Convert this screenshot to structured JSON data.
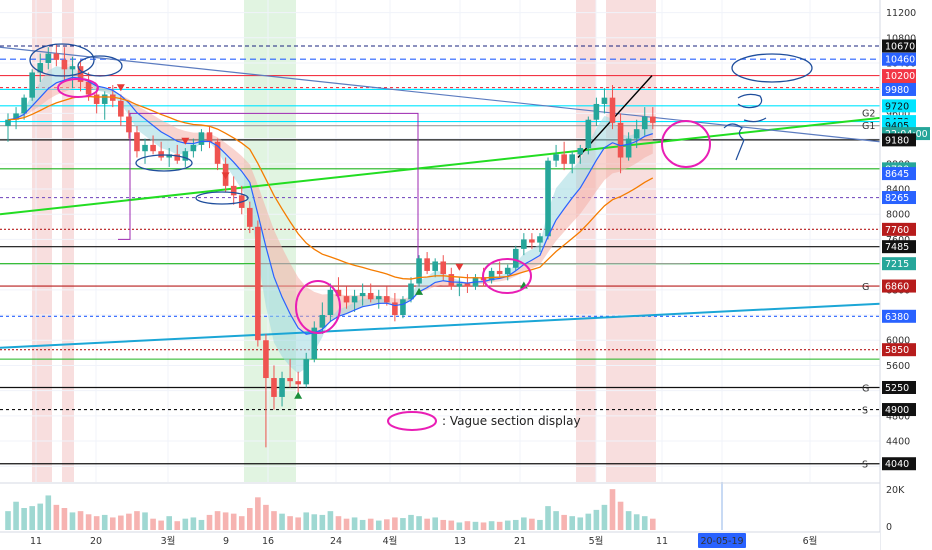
{
  "chart_data": {
    "type": "candlestick",
    "y_axis": {
      "ticks": [
        11200,
        10800,
        10400,
        10000,
        9600,
        9200,
        8800,
        8400,
        8000,
        7600,
        7200,
        6800,
        6400,
        6000,
        5600,
        5200,
        4800,
        4400,
        4000
      ],
      "ylim": [
        3750,
        11400
      ],
      "scale": "linear"
    },
    "x_axis": {
      "labels": [
        "11",
        "20",
        "3월",
        "9",
        "16",
        "24",
        "4월",
        "13",
        "21",
        "5월",
        "11",
        "20-05-19",
        "6월"
      ],
      "highlighted_label": "20-05-19"
    },
    "price_tags": [
      {
        "label": "10670",
        "value": 10670,
        "bg": "#111111",
        "fg": "#ffffff"
      },
      {
        "label": "10460",
        "value": 10460,
        "bg": "#2962ff",
        "fg": "#ffffff"
      },
      {
        "label": "10200",
        "value": 10200,
        "bg": "#f23645",
        "fg": "#ffffff"
      },
      {
        "label": "10010",
        "value": 10010,
        "bg": "#f23645",
        "fg": "#ffffff"
      },
      {
        "label": "9980",
        "value": 9980,
        "bg": "#2962ff",
        "fg": "#ffffff"
      },
      {
        "label": "9720",
        "value": 9720,
        "bg": "#00e5ff",
        "fg": "#111111"
      },
      {
        "label": "9470",
        "value": 9470,
        "bg": "#00e5ff",
        "fg": "#111111"
      },
      {
        "label": "9405",
        "value": 9405,
        "bg": "#00e5ff",
        "fg": "#111111"
      },
      {
        "label": "22:04:00",
        "value": 9280,
        "bg": "#26a69a",
        "fg": "#ffffff"
      },
      {
        "label": "9180",
        "value": 9180,
        "bg": "#111111",
        "fg": "#ffffff"
      },
      {
        "label": "8720",
        "value": 8720,
        "bg": "#26a69a",
        "fg": "#ffffff"
      },
      {
        "label": "8645",
        "value": 8645,
        "bg": "#2962ff",
        "fg": "#ffffff"
      },
      {
        "label": "8265",
        "value": 8265,
        "bg": "#2962ff",
        "fg": "#ffffff"
      },
      {
        "label": "7760",
        "value": 7760,
        "bg": "#b71c1c",
        "fg": "#ffffff"
      },
      {
        "label": "7485",
        "value": 7485,
        "bg": "#111111",
        "fg": "#ffffff"
      },
      {
        "label": "7215",
        "value": 7215,
        "bg": "#26a69a",
        "fg": "#ffffff"
      },
      {
        "label": "6860",
        "value": 6860,
        "bg": "#b71c1c",
        "fg": "#ffffff"
      },
      {
        "label": "6380",
        "value": 6380,
        "bg": "#2962ff",
        "fg": "#ffffff"
      },
      {
        "label": "5850",
        "value": 5850,
        "bg": "#b71c1c",
        "fg": "#ffffff"
      },
      {
        "label": "5250",
        "value": 5250,
        "bg": "#111111",
        "fg": "#ffffff"
      },
      {
        "label": "4900",
        "value": 4900,
        "bg": "#111111",
        "fg": "#ffffff"
      },
      {
        "label": "4040",
        "value": 4040,
        "bg": "#111111",
        "fg": "#ffffff"
      }
    ],
    "horizontal_levels": [
      {
        "value": 10670,
        "color": "#1a237e",
        "dash": "4,3"
      },
      {
        "value": 10460,
        "color": "#2962ff",
        "dash": "6,4"
      },
      {
        "value": 10200,
        "color": "#f23645",
        "dash": ""
      },
      {
        "value": 10010,
        "color": "#f23645",
        "dash": "3,3"
      },
      {
        "value": 9980,
        "color": "#00e5ff",
        "dash": ""
      },
      {
        "value": 9720,
        "color": "#00e5ff",
        "dash": ""
      },
      {
        "value": 9470,
        "color": "#00e5ff",
        "dash": ""
      },
      {
        "value": 9405,
        "color": "#9e9e9e",
        "dash": ""
      },
      {
        "value": 9180,
        "color": "#111111",
        "dash": ""
      },
      {
        "value": 8720,
        "color": "#1db41d",
        "dash": ""
      },
      {
        "value": 8265,
        "color": "#7e57c2",
        "dash": "3,3"
      },
      {
        "value": 7760,
        "color": "#b71c1c",
        "dash": "2,2"
      },
      {
        "value": 7485,
        "color": "#111111",
        "dash": ""
      },
      {
        "value": 7215,
        "color": "#1db41d",
        "dash": ""
      },
      {
        "value": 6860,
        "color": "#b71c1c",
        "dash": ""
      },
      {
        "value": 6380,
        "color": "#2962ff",
        "dash": "3,3"
      },
      {
        "value": 5850,
        "color": "#b71c1c",
        "dash": "2,2"
      },
      {
        "value": 5700,
        "color": "#1db41d",
        "dash": ""
      },
      {
        "value": 5250,
        "color": "#111111",
        "dash": ""
      },
      {
        "value": 4900,
        "color": "#111111",
        "dash": "3,3"
      },
      {
        "value": 4040,
        "color": "#111111",
        "dash": ""
      }
    ],
    "level_markers": [
      {
        "label": "G2",
        "value": 9520
      },
      {
        "label": "G1",
        "value": 9420
      },
      {
        "label": "G",
        "value": 6860
      },
      {
        "label": "G",
        "value": 5250
      },
      {
        "label": "S",
        "value": 4900
      },
      {
        "label": "S",
        "value": 4040
      }
    ],
    "candles": [
      [
        9400,
        9600,
        9150,
        9500
      ],
      [
        9500,
        9700,
        9350,
        9600
      ],
      [
        9600,
        9900,
        9500,
        9850
      ],
      [
        9850,
        10300,
        9800,
        10250
      ],
      [
        10250,
        10550,
        10100,
        10400
      ],
      [
        10400,
        10650,
        10300,
        10550
      ],
      [
        10550,
        10700,
        10350,
        10450
      ],
      [
        10450,
        10650,
        10100,
        10300
      ],
      [
        10300,
        10500,
        10000,
        10350
      ],
      [
        10350,
        10450,
        9950,
        10100
      ],
      [
        10100,
        10250,
        9800,
        9900
      ],
      [
        9900,
        10000,
        9600,
        9750
      ],
      [
        9750,
        9950,
        9500,
        9900
      ],
      [
        9900,
        10050,
        9700,
        9800
      ],
      [
        9800,
        9900,
        9400,
        9550
      ],
      [
        9550,
        9650,
        9200,
        9300
      ],
      [
        9300,
        9400,
        8900,
        9000
      ],
      [
        9000,
        9200,
        8800,
        9100
      ],
      [
        9100,
        9250,
        8950,
        9000
      ],
      [
        9000,
        9150,
        8850,
        8900
      ],
      [
        8900,
        9050,
        8750,
        8950
      ],
      [
        8950,
        9100,
        8800,
        8850
      ],
      [
        8850,
        9050,
        8750,
        9000
      ],
      [
        9000,
        9200,
        8900,
        9100
      ],
      [
        9100,
        9350,
        9000,
        9300
      ],
      [
        9300,
        9400,
        9050,
        9150
      ],
      [
        9150,
        9200,
        8700,
        8800
      ],
      [
        8800,
        8900,
        8350,
        8450
      ],
      [
        8450,
        8600,
        8150,
        8300
      ],
      [
        8300,
        8450,
        8000,
        8100
      ],
      [
        8100,
        8200,
        7700,
        7800
      ],
      [
        7800,
        7900,
        5900,
        6000
      ],
      [
        6000,
        6100,
        4300,
        5400
      ],
      [
        5400,
        5600,
        4900,
        5100
      ],
      [
        5100,
        5500,
        4950,
        5400
      ],
      [
        5400,
        5700,
        5250,
        5350
      ],
      [
        5350,
        5500,
        5100,
        5300
      ],
      [
        5300,
        5800,
        5250,
        5700
      ],
      [
        5700,
        6300,
        5650,
        6200
      ],
      [
        6200,
        6600,
        6100,
        6400
      ],
      [
        6400,
        6900,
        6300,
        6800
      ],
      [
        6800,
        7000,
        6650,
        6700
      ],
      [
        6700,
        6850,
        6500,
        6600
      ],
      [
        6600,
        6800,
        6450,
        6700
      ],
      [
        6700,
        6900,
        6550,
        6750
      ],
      [
        6750,
        6900,
        6600,
        6650
      ],
      [
        6650,
        6800,
        6500,
        6700
      ],
      [
        6700,
        6850,
        6550,
        6600
      ],
      [
        6600,
        6750,
        6300,
        6400
      ],
      [
        6400,
        6700,
        6350,
        6650
      ],
      [
        6650,
        7000,
        6600,
        6900
      ],
      [
        6900,
        7350,
        6850,
        7300
      ],
      [
        7300,
        7400,
        7050,
        7100
      ],
      [
        7100,
        7300,
        7000,
        7250
      ],
      [
        7250,
        7350,
        6950,
        7050
      ],
      [
        7050,
        7150,
        6800,
        6850
      ],
      [
        6850,
        7000,
        6700,
        6900
      ],
      [
        6900,
        7050,
        6750,
        6850
      ],
      [
        6850,
        7050,
        6800,
        7000
      ],
      [
        7000,
        7150,
        6850,
        6950
      ],
      [
        6950,
        7150,
        6900,
        7100
      ],
      [
        7100,
        7250,
        7000,
        7050
      ],
      [
        7050,
        7200,
        6950,
        7150
      ],
      [
        7150,
        7500,
        7100,
        7450
      ],
      [
        7450,
        7700,
        7350,
        7600
      ],
      [
        7600,
        7700,
        7450,
        7550
      ],
      [
        7550,
        7700,
        7400,
        7650
      ],
      [
        7650,
        8900,
        7600,
        8850
      ],
      [
        8850,
        9100,
        8750,
        8950
      ],
      [
        8950,
        9150,
        8700,
        8800
      ],
      [
        8800,
        9000,
        8650,
        8950
      ],
      [
        8950,
        9100,
        8800,
        9050
      ],
      [
        9050,
        9550,
        8950,
        9500
      ],
      [
        9500,
        9850,
        9400,
        9750
      ],
      [
        9750,
        10000,
        9600,
        9850
      ],
      [
        9850,
        10050,
        9350,
        9450
      ],
      [
        9450,
        9600,
        8650,
        8900
      ],
      [
        8900,
        9300,
        8850,
        9200
      ],
      [
        9200,
        9500,
        9050,
        9350
      ],
      [
        9350,
        9700,
        9250,
        9550
      ],
      [
        9550,
        9700,
        9350,
        9450
      ]
    ],
    "volume": [
      30,
      45,
      35,
      38,
      42,
      55,
      40,
      35,
      28,
      30,
      25,
      22,
      24,
      20,
      23,
      26,
      30,
      28,
      18,
      15,
      22,
      14,
      18,
      20,
      16,
      24,
      30,
      28,
      26,
      22,
      35,
      52,
      40,
      30,
      26,
      22,
      20,
      28,
      25,
      24,
      30,
      22,
      18,
      20,
      16,
      18,
      15,
      17,
      20,
      19,
      24,
      22,
      18,
      20,
      16,
      15,
      12,
      14,
      13,
      12,
      14,
      13,
      15,
      16,
      20,
      18,
      16,
      38,
      30,
      24,
      22,
      20,
      26,
      32,
      40,
      65,
      45,
      30,
      25,
      22,
      18
    ],
    "volume_axis": {
      "ticks": [
        "20K",
        "0"
      ]
    },
    "annotations": [
      {
        "text": ": Vague section display"
      }
    ]
  },
  "colors": {
    "up": "#26a69a",
    "down": "#ef5350",
    "ema_fast": "#2962ff",
    "ema_slow": "#f57c00",
    "trend_green": "#22dd22",
    "trend_cyan": "#1ba6d6",
    "highlight_magenta": "#e91eb5",
    "annotation_blue": "#1f4e9c"
  }
}
